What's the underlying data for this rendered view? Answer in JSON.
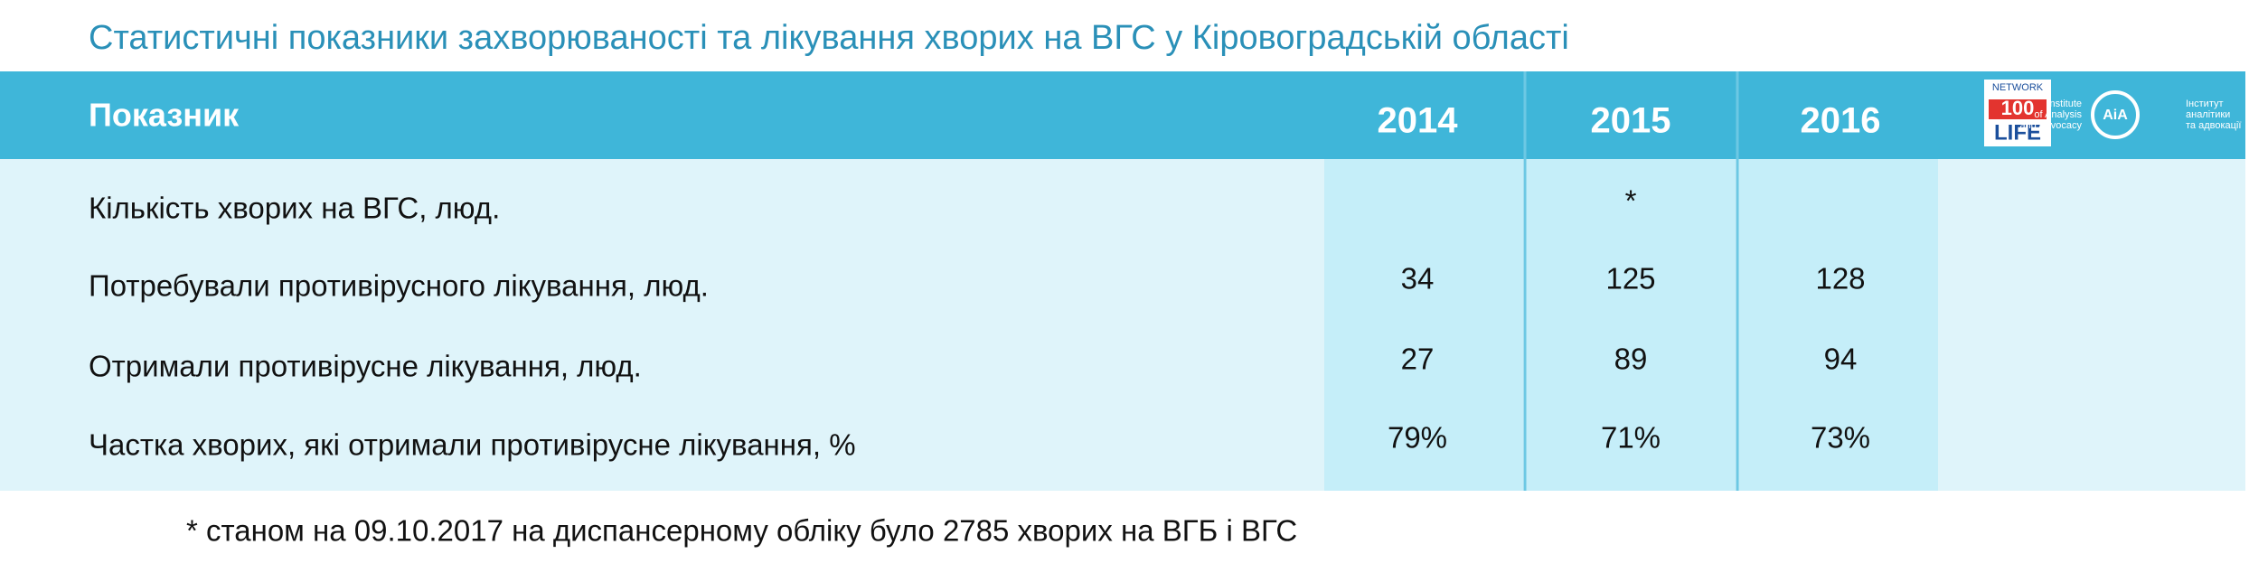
{
  "title": "Статистичні показники захворюваності та лікування хворих на ВГС у Кіровоградській області",
  "table": {
    "header": [
      "Показник",
      "2014",
      "2015",
      "2016"
    ],
    "rows": [
      [
        "Кількість хворих на ВГС, люд.",
        null,
        "*",
        null
      ],
      [
        "Потребували противірусного лікування, люд.",
        34,
        125,
        128
      ],
      [
        "Отримали противірусне лікування, люд.",
        27,
        89,
        94
      ],
      [
        "Частка хворих, які отримали противірусне лікування, %",
        "79%",
        "71%",
        "73%"
      ]
    ]
  },
  "logos": {
    "network": [
      "NETWORK",
      "100",
      "LIFE"
    ],
    "institute_en": [
      "Institute",
      "of Analysis",
      "and Advocacy"
    ],
    "institute_mark": "AiA",
    "institute_uk": [
      "Інститут",
      "аналітики",
      "та адвокації"
    ]
  },
  "footnote": "* станом на 09.10.2017 на диспансерному обліку було 2785 хворих на ВГБ і ВГС"
}
